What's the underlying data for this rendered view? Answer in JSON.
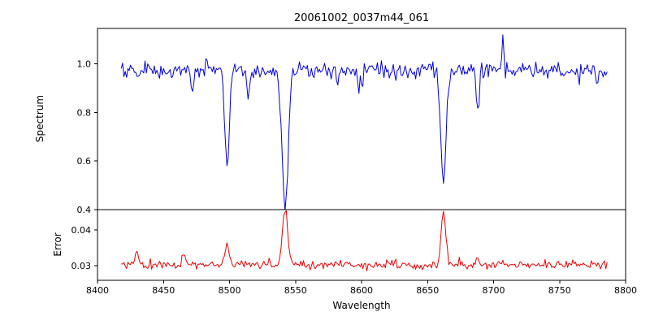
{
  "figure": {
    "title": "20061002_0037m44_061",
    "xlabel": "Wavelength",
    "background_color": "#ffffff",
    "spine_color": "#000000"
  },
  "axes": {
    "x": {
      "label": "Wavelength",
      "lim": [
        8400,
        8800
      ],
      "ticks": [
        8400,
        8450,
        8500,
        8550,
        8600,
        8650,
        8700,
        8750,
        8800
      ],
      "tick_labels": [
        "8400",
        "8450",
        "8500",
        "8550",
        "8600",
        "8650",
        "8700",
        "8750",
        "8800"
      ]
    }
  },
  "chart_data": [
    {
      "panel": "spectrum",
      "type": "line",
      "color": "#0000dd",
      "ylabel": "Spectrum",
      "ylim": [
        0.4,
        1.145
      ],
      "ytick_values": [
        0.4,
        0.6,
        0.8,
        1.0
      ],
      "ytick_labels": [
        "0.4",
        "0.6",
        "0.8",
        "1.0"
      ],
      "x_start": 8418,
      "x_end": 8786,
      "x_step": 1,
      "continuum": 0.975,
      "noise_std": 0.016,
      "spike_prob": 0.05,
      "spike_max": 0.055,
      "spike_sign": -1,
      "features": [
        {
          "center": 8430,
          "amp": -0.04,
          "sigma": 1.0
        },
        {
          "center": 8472,
          "amp": -0.1,
          "sigma": 0.9
        },
        {
          "center": 8498,
          "amp": -0.4,
          "sigma": 1.7
        },
        {
          "center": 8514,
          "amp": -0.13,
          "sigma": 0.9
        },
        {
          "center": 8542,
          "amp": -0.55,
          "sigma": 2.3
        },
        {
          "center": 8582,
          "amp": -0.06,
          "sigma": 0.9
        },
        {
          "center": 8598,
          "amp": -0.07,
          "sigma": 0.9
        },
        {
          "center": 8662,
          "amp": -0.47,
          "sigma": 2.0
        },
        {
          "center": 8688,
          "amp": -0.17,
          "sigma": 1.1
        },
        {
          "center": 8707,
          "amp": 0.13,
          "sigma": 0.7
        }
      ],
      "key_lines": [
        {
          "wavelength": 8498,
          "min_value": 0.59
        },
        {
          "wavelength": 8542,
          "min_value": 0.43
        },
        {
          "wavelength": 8662,
          "min_value": 0.5
        }
      ]
    },
    {
      "panel": "error",
      "type": "line",
      "color": "#ee0000",
      "ylabel": "Error",
      "ylim": [
        0.0259,
        0.0457
      ],
      "ytick_values": [
        0.03,
        0.04
      ],
      "ytick_labels": [
        "0.03",
        "0.04"
      ],
      "x_start": 8418,
      "x_end": 8786,
      "x_step": 1,
      "continuum": 0.0302,
      "noise_std": 0.0005,
      "spike_prob": 0.06,
      "spike_max": 0.0012,
      "spike_sign": 1,
      "features": [
        {
          "center": 8430,
          "amp": 0.0033,
          "sigma": 1.4
        },
        {
          "center": 8465,
          "amp": 0.0033,
          "sigma": 1.4
        },
        {
          "center": 8498,
          "amp": 0.006,
          "sigma": 1.6
        },
        {
          "center": 8514,
          "amp": 0.0012,
          "sigma": 1.0
        },
        {
          "center": 8542,
          "amp": 0.0155,
          "sigma": 2.0
        },
        {
          "center": 8582,
          "amp": 0.0008,
          "sigma": 1.0
        },
        {
          "center": 8620,
          "amp": 0.001,
          "sigma": 1.2
        },
        {
          "center": 8662,
          "amp": 0.0148,
          "sigma": 1.8
        },
        {
          "center": 8688,
          "amp": 0.0018,
          "sigma": 1.0
        },
        {
          "center": 8707,
          "amp": 0.0008,
          "sigma": 0.8
        }
      ],
      "key_peaks": [
        {
          "wavelength": 8542,
          "max_value": 0.046
        },
        {
          "wavelength": 8662,
          "max_value": 0.045
        }
      ]
    }
  ]
}
